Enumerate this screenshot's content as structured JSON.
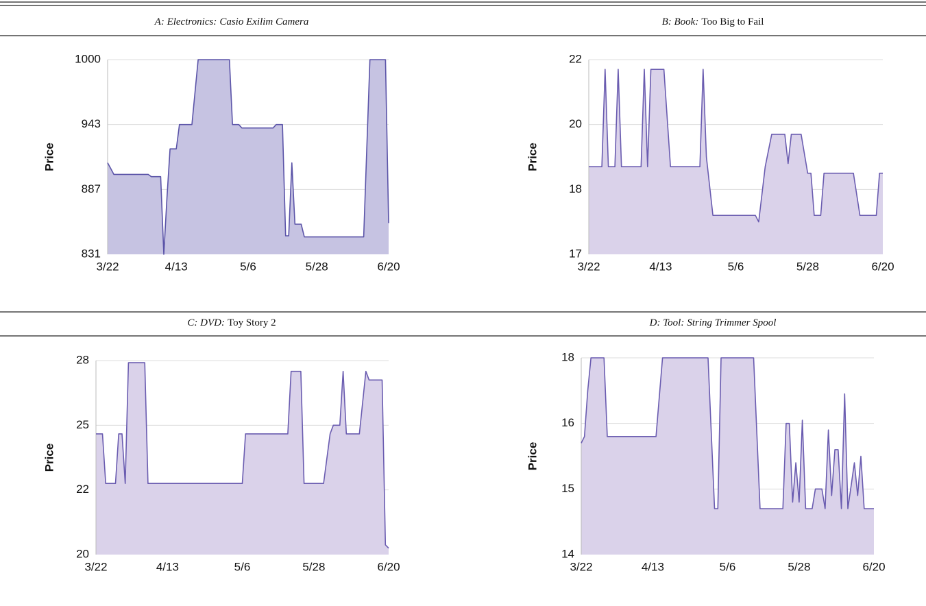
{
  "chart_data": [
    {
      "type": "area",
      "panel_label": "A: Electronics:",
      "title": "Casio Exilim Camera",
      "title_italic": true,
      "ylabel": "Price",
      "color": "#5b54a8",
      "fill": "#c6c3e2",
      "grid": true,
      "x": [
        "3/22",
        "3/23",
        "3/24",
        "4/4",
        "4/5",
        "4/8",
        "4/9",
        "4/10",
        "4/11",
        "4/13",
        "4/14",
        "4/18",
        "4/20",
        "4/30",
        "5/1",
        "5/3",
        "5/4",
        "5/14",
        "5/15",
        "5/17",
        "5/18",
        "5/19",
        "5/20",
        "5/21",
        "5/23",
        "5/24",
        "6/12",
        "6/14",
        "6/19",
        "6/20"
      ],
      "values": [
        910,
        905,
        900,
        900,
        898,
        898,
        831,
        880,
        922,
        922,
        943,
        943,
        1000,
        1000,
        943,
        943,
        940,
        940,
        943,
        943,
        847,
        847,
        910,
        857,
        857,
        846,
        846,
        1000,
        1000,
        858
      ],
      "xlim": [
        "3/22",
        "6/20"
      ],
      "xticks": [
        "3/22",
        "4/13",
        "5/6",
        "5/28",
        "6/20"
      ],
      "ylim": [
        831,
        1000
      ],
      "yticks": [
        831,
        887,
        943,
        1000
      ]
    },
    {
      "type": "area",
      "panel_label": "B: Book:",
      "title": "Too Big to Fail",
      "title_italic": false,
      "ylabel": "Price",
      "color": "#6a5cb0",
      "fill": "#dad2ea",
      "grid": true,
      "x": [
        "3/22",
        "3/26",
        "3/27",
        "3/28",
        "3/30",
        "3/31",
        "4/1",
        "4/7",
        "4/8",
        "4/9",
        "4/10",
        "4/14",
        "4/16",
        "4/25",
        "4/26",
        "4/27",
        "4/29",
        "5/12",
        "5/13",
        "5/15",
        "5/17",
        "5/21",
        "5/22",
        "5/23",
        "5/26",
        "5/28",
        "5/29",
        "5/30",
        "6/1",
        "6/2",
        "6/11",
        "6/13",
        "6/18",
        "6/19",
        "6/20"
      ],
      "values": [
        18.7,
        18.7,
        21.7,
        18.7,
        18.7,
        21.7,
        18.7,
        18.7,
        21.7,
        18.7,
        21.7,
        21.7,
        18.7,
        18.7,
        21.7,
        19,
        17.6,
        17.6,
        17.5,
        18.7,
        19.7,
        19.7,
        18.8,
        19.7,
        19.7,
        18.5,
        18.5,
        17.6,
        17.6,
        18.5,
        18.5,
        17.6,
        17.6,
        18.5,
        18.5
      ],
      "xlim": [
        "3/22",
        "6/20"
      ],
      "xticks": [
        "3/22",
        "4/13",
        "5/6",
        "5/28",
        "6/20"
      ],
      "ylim": [
        17,
        22
      ],
      "yticks": [
        17,
        18,
        20,
        22
      ]
    },
    {
      "type": "area",
      "panel_label": "C: DVD:",
      "title": "Toy Story 2",
      "title_italic": false,
      "ylabel": "Price",
      "color": "#6a5cb0",
      "fill": "#dad2ea",
      "grid": true,
      "x": [
        "3/22",
        "3/24",
        "3/25",
        "3/28",
        "3/29",
        "3/30",
        "3/31",
        "4/1",
        "4/6",
        "4/7",
        "5/6",
        "5/7",
        "5/20",
        "5/21",
        "5/24",
        "5/25",
        "5/31",
        "6/2",
        "6/3",
        "6/5",
        "6/6",
        "6/7",
        "6/11",
        "6/13",
        "6/14",
        "6/18",
        "6/19",
        "6/20"
      ],
      "values": [
        24.6,
        24.6,
        22.3,
        22.3,
        24.6,
        24.6,
        22.3,
        27.9,
        27.9,
        22.3,
        22.3,
        24.6,
        24.6,
        27.5,
        27.5,
        22.3,
        22.3,
        24.6,
        25,
        25,
        27.5,
        24.6,
        24.6,
        27.5,
        27.1,
        27.1,
        20.3,
        20.2
      ],
      "xlim": [
        "3/22",
        "6/20"
      ],
      "xticks": [
        "3/22",
        "4/13",
        "5/6",
        "5/28",
        "6/20"
      ],
      "ylim": [
        20,
        28
      ],
      "yticks": [
        20,
        22,
        25,
        28
      ]
    },
    {
      "type": "area",
      "panel_label": "D: Tool:",
      "title": "String Trimmer Spool",
      "title_italic": true,
      "ylabel": "Price",
      "color": "#6a5cb0",
      "fill": "#dad2ea",
      "grid": true,
      "x": [
        "3/22",
        "3/23",
        "3/24",
        "3/25",
        "3/29",
        "3/30",
        "4/14",
        "4/16",
        "4/30",
        "5/2",
        "5/3",
        "5/4",
        "5/14",
        "5/16",
        "5/23",
        "5/24",
        "5/25",
        "5/26",
        "5/27",
        "5/28",
        "5/29",
        "5/30",
        "6/1",
        "6/2",
        "6/4",
        "6/5",
        "6/6",
        "6/7",
        "6/8",
        "6/9",
        "6/10",
        "6/11",
        "6/12",
        "6/14",
        "6/15",
        "6/16",
        "6/17",
        "6/20"
      ],
      "values": [
        15.7,
        15.8,
        17,
        18,
        18,
        15.8,
        15.8,
        18,
        18,
        14.7,
        14.7,
        18,
        18,
        14.7,
        14.7,
        16,
        16,
        14.8,
        15.4,
        14.8,
        16.1,
        14.7,
        14.7,
        15,
        15,
        14.7,
        15.9,
        14.9,
        15.6,
        15.6,
        14.7,
        16.9,
        14.7,
        15.4,
        14.9,
        15.5,
        14.7,
        14.7
      ],
      "xlim": [
        "3/22",
        "6/20"
      ],
      "xticks": [
        "3/22",
        "4/13",
        "5/6",
        "5/28",
        "6/20"
      ],
      "ylim": [
        14,
        18
      ],
      "yticks": [
        14,
        15,
        16,
        18
      ]
    }
  ]
}
